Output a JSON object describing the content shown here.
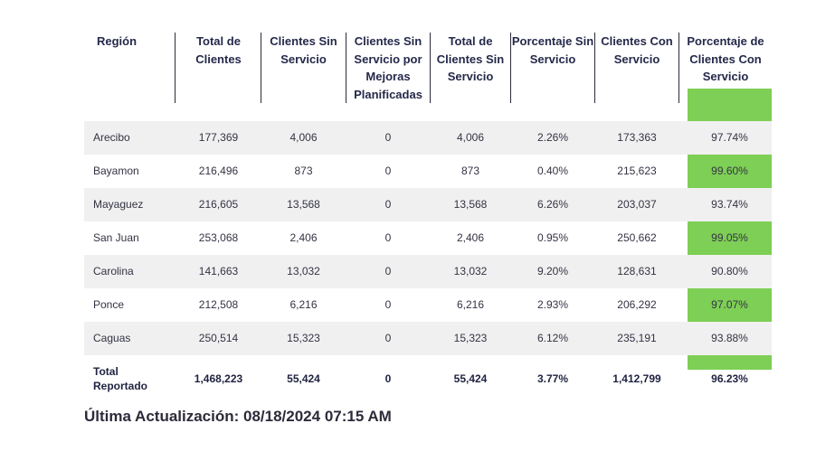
{
  "headers": [
    "Región",
    "Total de Clientes",
    "Clientes Sin Servicio",
    "Clientes Sin Servicio por Mejoras Planificadas",
    "Total de Clientes Sin Servicio",
    "Porcentaje Sin Servicio",
    "Clientes Con Servicio",
    "Porcentaje de Clientes Con Servicio"
  ],
  "rows": [
    [
      "Arecibo",
      "177,369",
      "4,006",
      "0",
      "4,006",
      "2.26%",
      "173,363",
      "97.74%"
    ],
    [
      "Bayamon",
      "216,496",
      "873",
      "0",
      "873",
      "0.40%",
      "215,623",
      "99.60%"
    ],
    [
      "Mayaguez",
      "216,605",
      "13,568",
      "0",
      "13,568",
      "6.26%",
      "203,037",
      "93.74%"
    ],
    [
      "San Juan",
      "253,068",
      "2,406",
      "0",
      "2,406",
      "0.95%",
      "250,662",
      "99.05%"
    ],
    [
      "Carolina",
      "141,663",
      "13,032",
      "0",
      "13,032",
      "9.20%",
      "128,631",
      "90.80%"
    ],
    [
      "Ponce",
      "212,508",
      "6,216",
      "0",
      "6,216",
      "2.93%",
      "206,292",
      "97.07%"
    ],
    [
      "Caguas",
      "250,514",
      "15,323",
      "0",
      "15,323",
      "6.12%",
      "235,191",
      "93.88%"
    ]
  ],
  "total": [
    "Total Reportado",
    "1,468,223",
    "55,424",
    "0",
    "55,424",
    "3.77%",
    "1,412,799",
    "96.23%"
  ],
  "footer": "Última Actualización: 08/18/2024 07:15 AM",
  "colors": {
    "highlight": "#7ecf55",
    "stripe": "#f0f0f0"
  }
}
